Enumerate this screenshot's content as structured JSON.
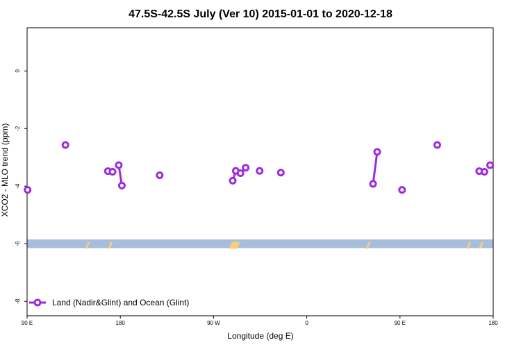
{
  "chart_data": {
    "type": "line",
    "title": "47.5S-42.5S July (Ver 10)   2015-01-01 to 2020-12-18",
    "xlabel": "Longitude (deg E)",
    "ylabel": "XCO2 - MLO trend (ppm)",
    "xlim": [
      90,
      540
    ],
    "ylim": [
      -8.5,
      1.5
    ],
    "x_ticks": [
      {
        "value": 90,
        "label": "90 E"
      },
      {
        "value": 180,
        "label": "180"
      },
      {
        "value": 270,
        "label": "90 W"
      },
      {
        "value": 360,
        "label": "0"
      },
      {
        "value": 450,
        "label": "90 E"
      },
      {
        "value": 540,
        "label": "180"
      }
    ],
    "y_ticks": [
      {
        "value": 0,
        "label": "0"
      },
      {
        "value": -2,
        "label": "-2"
      },
      {
        "value": -4,
        "label": "-4"
      },
      {
        "value": -6,
        "label": "-6"
      },
      {
        "value": -8,
        "label": "-8"
      }
    ],
    "grid": false,
    "legend_position": "bottom-left",
    "series": [
      {
        "name": "Land (Nadir&Glint) and Ocean (Glint)",
        "color": "#9b2be0",
        "segments": [
          [
            [
              90.5,
              -4.13
            ]
          ],
          [
            [
              127,
              -2.57
            ]
          ],
          [
            [
              168,
              -3.48
            ]
          ],
          [
            [
              172.5,
              -3.5
            ]
          ],
          [
            [
              178.5,
              -3.27
            ],
            [
              181.5,
              -3.98
            ]
          ],
          [
            [
              218,
              -3.62
            ]
          ],
          [
            [
              288.5,
              -3.81
            ],
            [
              291.5,
              -3.47
            ]
          ],
          [
            [
              296,
              -3.55
            ]
          ],
          [
            [
              301,
              -3.36
            ]
          ],
          [
            [
              314.5,
              -3.47
            ]
          ],
          [
            [
              335,
              -3.53
            ]
          ],
          [
            [
              424,
              -3.92
            ],
            [
              428,
              -2.81
            ]
          ],
          [
            [
              452,
              -4.13
            ]
          ],
          [
            [
              486,
              -2.57
            ]
          ],
          [
            [
              526.5,
              -3.48
            ]
          ],
          [
            [
              531.5,
              -3.5
            ]
          ],
          [
            [
              537,
              -3.27
            ]
          ]
        ]
      }
    ],
    "background_band": {
      "y_center": -6.0,
      "y_half_height": 0.15,
      "color": "#a7bddc"
    },
    "land_patches": {
      "color": "#f6d07a",
      "x_centers": [
        148,
        170,
        287,
        289,
        291,
        293,
        419,
        516,
        528
      ]
    }
  }
}
